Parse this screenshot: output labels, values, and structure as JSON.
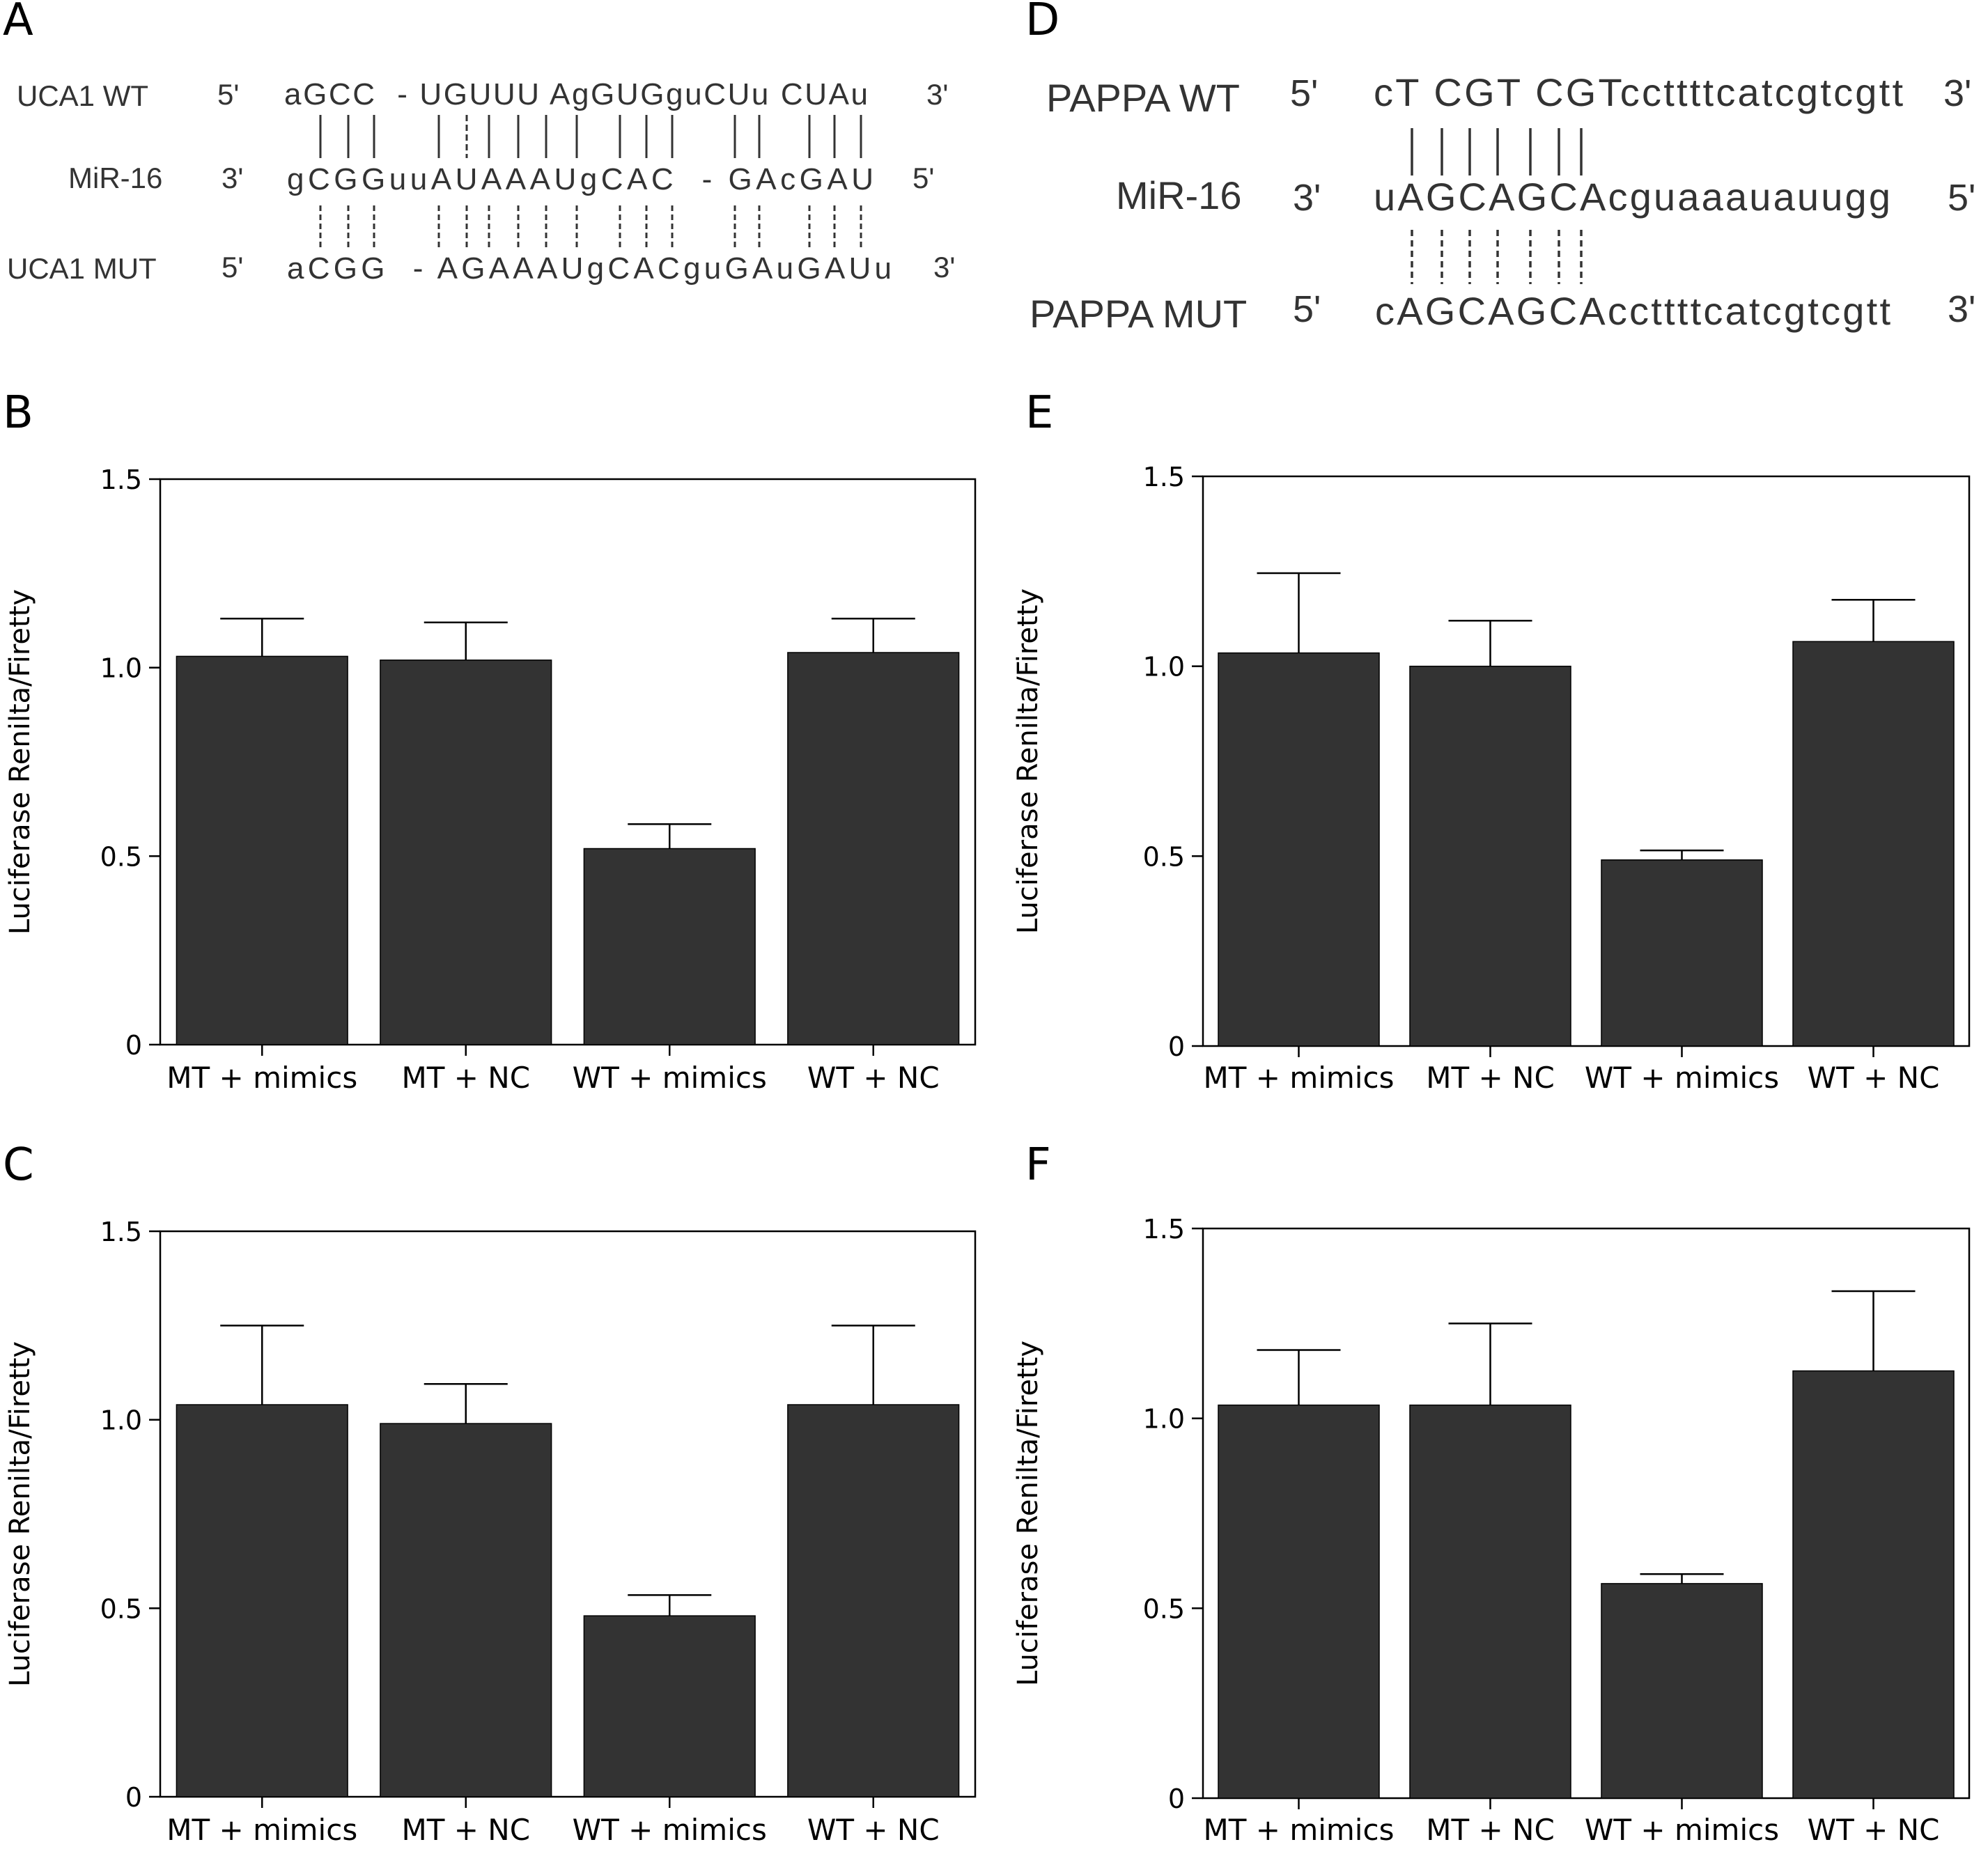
{
  "panels": {
    "A": {
      "letter": "A",
      "rows": [
        {
          "name": "UCA1 WT",
          "left_end": "5'",
          "sequence": "aGCC  - UGUUU AgGUGguCUu CUAu",
          "right_end": "3'"
        },
        {
          "name": "MiR-16",
          "left_end": "3'",
          "sequence": "gCGGuuAUAAAUgCAC  - GAcGAU",
          "right_end": "5'"
        },
        {
          "name": "UCA1 MUT",
          "left_end": "5'",
          "sequence": "aCGG  - AGAAAUgCACguGAuGAUu",
          "right_end": "3'"
        }
      ]
    },
    "D": {
      "letter": "D",
      "rows": [
        {
          "name": "PAPPA WT",
          "left_end": "5'",
          "sequence": "cT CGT CGTccttttcatcgtcgtt",
          "right_end": "3'"
        },
        {
          "name": "MiR-16",
          "left_end": "3'",
          "sequence": "uAGCAGCAcguaaauauugg",
          "right_end": "5'"
        },
        {
          "name": "PAPPA MUT",
          "left_end": "5'",
          "sequence": "cAGCAGCAccttttcatcgtcgtt",
          "right_end": "3'"
        }
      ]
    }
  },
  "colors": {
    "bar": "#333333",
    "axis": "#000000"
  },
  "chart_data": [
    {
      "letter": "B",
      "type": "bar",
      "categories": [
        "MT + mimics",
        "MT + NC",
        "WT + mimics",
        "WT + NC"
      ],
      "values": [
        1.03,
        1.02,
        0.52,
        1.04
      ],
      "errors": [
        0.1,
        0.1,
        0.065,
        0.09
      ],
      "ylabel": "Luciferase Renilta/Firetty",
      "ylim": [
        0,
        1.5
      ],
      "yticks": [
        "0",
        "0.5",
        "1.0",
        "1.5"
      ],
      "grid": false
    },
    {
      "letter": "C",
      "type": "bar",
      "categories": [
        "MT + mimics",
        "MT + NC",
        "WT + mimics",
        "WT + NC"
      ],
      "values": [
        1.04,
        0.99,
        0.48,
        1.04
      ],
      "errors": [
        0.21,
        0.105,
        0.055,
        0.21
      ],
      "ylabel": "Luciferase Renilta/Firetty",
      "ylim": [
        0,
        1.5
      ],
      "yticks": [
        "0",
        "0.5",
        "1.0",
        "1.5"
      ],
      "grid": false
    },
    {
      "letter": "E",
      "type": "bar",
      "categories": [
        "MT + mimics",
        "MT + NC",
        "WT + mimics",
        "WT + NC"
      ],
      "values": [
        1.035,
        1.0,
        0.49,
        1.065
      ],
      "errors": [
        0.21,
        0.12,
        0.025,
        0.11
      ],
      "ylabel": "Luciferase Renilta/Firetty",
      "ylim": [
        0,
        1.5
      ],
      "yticks": [
        "0",
        "0.5",
        "1.0",
        "1.5"
      ],
      "grid": false
    },
    {
      "letter": "F",
      "type": "bar",
      "categories": [
        "MT + mimics",
        "MT + NC",
        "WT + mimics",
        "WT + NC"
      ],
      "values": [
        1.035,
        1.035,
        0.565,
        1.125
      ],
      "errors": [
        0.145,
        0.215,
        0.025,
        0.21
      ],
      "ylabel": "Luciferase Renilta/Firetty",
      "ylim": [
        0,
        1.5
      ],
      "yticks": [
        "0",
        "0.5",
        "1.0",
        "1.5"
      ],
      "grid": false
    }
  ]
}
